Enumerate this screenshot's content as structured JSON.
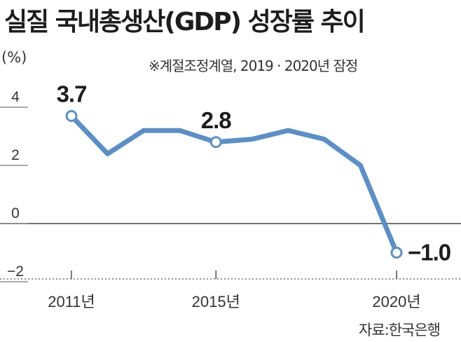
{
  "title": "실질 국내총생산(GDP) 성장률 추이",
  "note": "※계절조정계열, 2019 · 2020년 잠정",
  "source": "자료:한국은행",
  "chart_data": {
    "type": "line",
    "title": "실질 국내총생산(GDP) 성장률 추이",
    "ylabel": "(%)",
    "x": [
      2011,
      2012,
      2013,
      2014,
      2015,
      2016,
      2017,
      2018,
      2019,
      2020
    ],
    "xtick_labels": [
      {
        "x": 2011,
        "label": "2011년"
      },
      {
        "x": 2015,
        "label": "2015년"
      },
      {
        "x": 2020,
        "label": "2020년"
      }
    ],
    "yticks": [
      {
        "value": 4,
        "label": "4"
      },
      {
        "value": 2,
        "label": "2"
      },
      {
        "value": 0,
        "label": "0"
      },
      {
        "value": -2,
        "label": "−2"
      }
    ],
    "ylim": [
      -2,
      4
    ],
    "series": [
      {
        "values": [
          3.7,
          2.4,
          3.2,
          3.2,
          2.8,
          2.9,
          3.2,
          2.9,
          2.0,
          -1.0
        ]
      }
    ],
    "markers": [
      2011,
      2015,
      2020
    ],
    "data_labels": [
      {
        "x": 2011,
        "text": "3.7"
      },
      {
        "x": 2015,
        "text": "2.8"
      },
      {
        "x": 2020,
        "text": "−1.0"
      }
    ],
    "colors": {
      "line": "#5b8fc7",
      "marker_fill": "#ffffff",
      "axis": "#222222",
      "grid": "#555555"
    },
    "grid": false
  }
}
